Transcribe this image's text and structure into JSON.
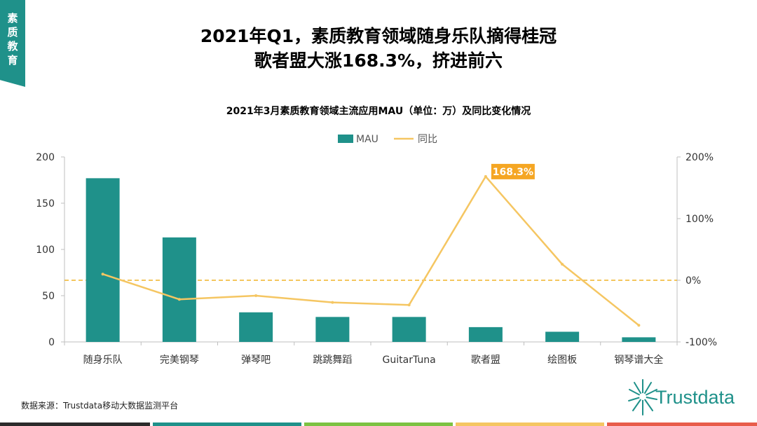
{
  "tab": {
    "label": "素质教育"
  },
  "header": {
    "title_line1": "2021年Q1，素质教育领域随身乐队摘得桂冠",
    "title_line2": "歌者盟大涨168.3%，挤进前六"
  },
  "chart_data": {
    "type": "bar",
    "title": "2021年3月素质教育领域主流应用MAU（单位：万）及同比变化情况",
    "categories": [
      "随身乐队",
      "完美钢琴",
      "弹琴吧",
      "跳跳舞蹈",
      "GuitarTuna",
      "歌者盟",
      "绘图板",
      "钢琴谱大全"
    ],
    "series": [
      {
        "name": "MAU",
        "type": "bar",
        "axis": "left",
        "color": "#1f918a",
        "values": [
          177,
          113,
          32,
          27,
          27,
          16,
          11,
          5
        ]
      },
      {
        "name": "同比",
        "type": "line",
        "axis": "right",
        "color": "#f5c662",
        "values": [
          10,
          -31,
          -25,
          -36,
          -40,
          168.3,
          26,
          -73
        ]
      }
    ],
    "left_axis": {
      "ylim": [
        0,
        200
      ],
      "ticks": [
        "0",
        "50",
        "100",
        "150",
        "200"
      ]
    },
    "right_axis": {
      "ylim": [
        -100,
        200
      ],
      "ticks": [
        "-100%",
        "0%",
        "100%",
        "200%"
      ]
    },
    "reference_line": {
      "value": 0,
      "axis": "right",
      "style": "dashed",
      "color": "#f0b429"
    },
    "annotation": {
      "text": "168.3%",
      "category": "歌者盟",
      "color": "#f5a623"
    },
    "legend": {
      "position": "top",
      "items": [
        "MAU",
        "同比"
      ]
    }
  },
  "footer": {
    "source": "数据来源：Trustdata移动大数据监测平台",
    "brand": "Trustdata"
  },
  "colors": {
    "bar": "#1f918a",
    "line": "#f5c662",
    "accent": "#f5a623",
    "tab": "#1f918a"
  }
}
